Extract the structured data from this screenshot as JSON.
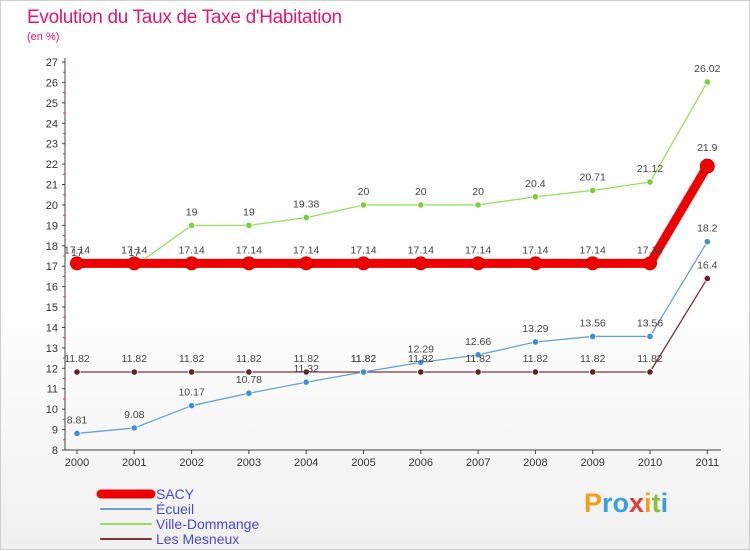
{
  "title": "Evolution du Taux de Taxe d'Habitation",
  "subtitle": "(en %)",
  "logo_text": "Proxiti",
  "chart_data": {
    "type": "line",
    "title": "Evolution du Taux de Taxe d'Habitation",
    "subtitle": "(en %)",
    "xlabel": "",
    "ylabel": "",
    "x": [
      "2000",
      "2001",
      "2002",
      "2003",
      "2004",
      "2005",
      "2006",
      "2007",
      "2008",
      "2009",
      "2010",
      "2011"
    ],
    "ylim": [
      8,
      27
    ],
    "yticks": [
      8,
      9,
      10,
      11,
      12,
      13,
      14,
      15,
      16,
      17,
      18,
      19,
      20,
      21,
      22,
      23,
      24,
      25,
      26,
      27
    ],
    "grid": false,
    "legend_position": "bottom-left",
    "series": [
      {
        "name": "SACY",
        "color": "#ee0000",
        "values": [
          17.14,
          17.14,
          17.14,
          17.14,
          17.14,
          17.14,
          17.14,
          17.14,
          17.14,
          17.14,
          17.14,
          21.9
        ],
        "labels": [
          "17.14",
          "17.14",
          "17.14",
          "17.14",
          "17.14",
          "17.14",
          "17.14",
          "17.14",
          "17.14",
          "17.14",
          "17.14",
          "21.9"
        ]
      },
      {
        "name": "Écueil",
        "color": "#6a9fd0",
        "values": [
          8.81,
          9.08,
          10.17,
          10.78,
          11.32,
          11.82,
          12.29,
          12.66,
          13.29,
          13.56,
          13.56,
          18.2
        ],
        "labels": [
          "8.81",
          "9.08",
          "10.17",
          "10.78",
          "11.32",
          "11.82",
          "12.29",
          "12.66",
          "13.29",
          "13.56",
          "13.56",
          "18.2"
        ]
      },
      {
        "name": "Ville-Dommange",
        "color": "#99dd66",
        "values": [
          17,
          17,
          19,
          19,
          19.38,
          20,
          20,
          20,
          20.4,
          20.71,
          21.12,
          26.02
        ],
        "labels": [
          "17",
          "17",
          "19",
          "19",
          "19.38",
          "20",
          "20",
          "20",
          "20.4",
          "20.71",
          "21.12",
          "26.02"
        ]
      },
      {
        "name": "Les Mesneux",
        "color": "#7a3535",
        "values": [
          11.82,
          11.82,
          11.82,
          11.82,
          11.82,
          11.82,
          11.82,
          11.82,
          11.82,
          11.82,
          11.82,
          16.4
        ],
        "labels": [
          "11.82",
          "11.82",
          "11.82",
          "11.82",
          "11.82",
          "11.82",
          "11.82",
          "11.82",
          "11.82",
          "11.82",
          "11.82",
          "16.4"
        ]
      }
    ]
  }
}
